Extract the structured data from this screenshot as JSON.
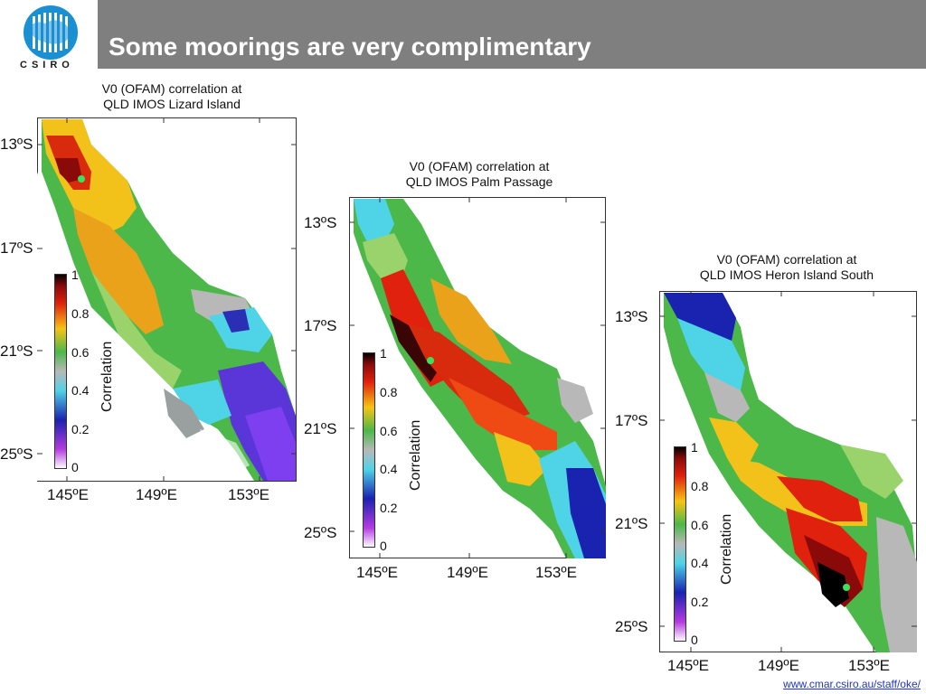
{
  "header": {
    "title": "Some moorings are very complimentary",
    "logo_text": "CSIRO",
    "logo_icon": "csiro-australia-logo"
  },
  "panels": [
    {
      "title_line1": "V0 (OFAM) correlation at",
      "title_line2": "QLD IMOS Lizard Island",
      "lat_labels": [
        "13ºS",
        "17ºS",
        "21ºS",
        "25ºS"
      ],
      "lon_labels": [
        "145ºE",
        "149ºE",
        "153ºE"
      ],
      "colorbar": {
        "label": "Correlation",
        "ticks": [
          "1",
          "0.8",
          "0.6",
          "0.4",
          "0.2",
          "0"
        ]
      }
    },
    {
      "title_line1": "V0 (OFAM) correlation at",
      "title_line2": "QLD IMOS Palm Passage",
      "lat_labels": [
        "13ºS",
        "17ºS",
        "21ºS",
        "25ºS"
      ],
      "lon_labels": [
        "145ºE",
        "149ºE",
        "153ºE"
      ],
      "colorbar": {
        "label": "Correlation",
        "ticks": [
          "1",
          "0.8",
          "0.6",
          "0.4",
          "0.2",
          "0"
        ]
      }
    },
    {
      "title_line1": "V0 (OFAM) correlation at",
      "title_line2": "QLD IMOS Heron Island South",
      "lat_labels": [
        "13ºS",
        "17ºS",
        "21ºS",
        "25ºS"
      ],
      "lon_labels": [
        "145ºE",
        "149ºE",
        "153ºE"
      ],
      "colorbar": {
        "label": "Correlation",
        "ticks": [
          "1",
          "0.8",
          "0.6",
          "0.4",
          "0.2",
          "0"
        ]
      }
    }
  ],
  "colors": {
    "header": "#7f7f7f",
    "link": "#1f35c9",
    "mooring_marker": "#3de05a"
  },
  "footer": {
    "link_text": "www.cmar.csiro.au/staff/oke/"
  }
}
